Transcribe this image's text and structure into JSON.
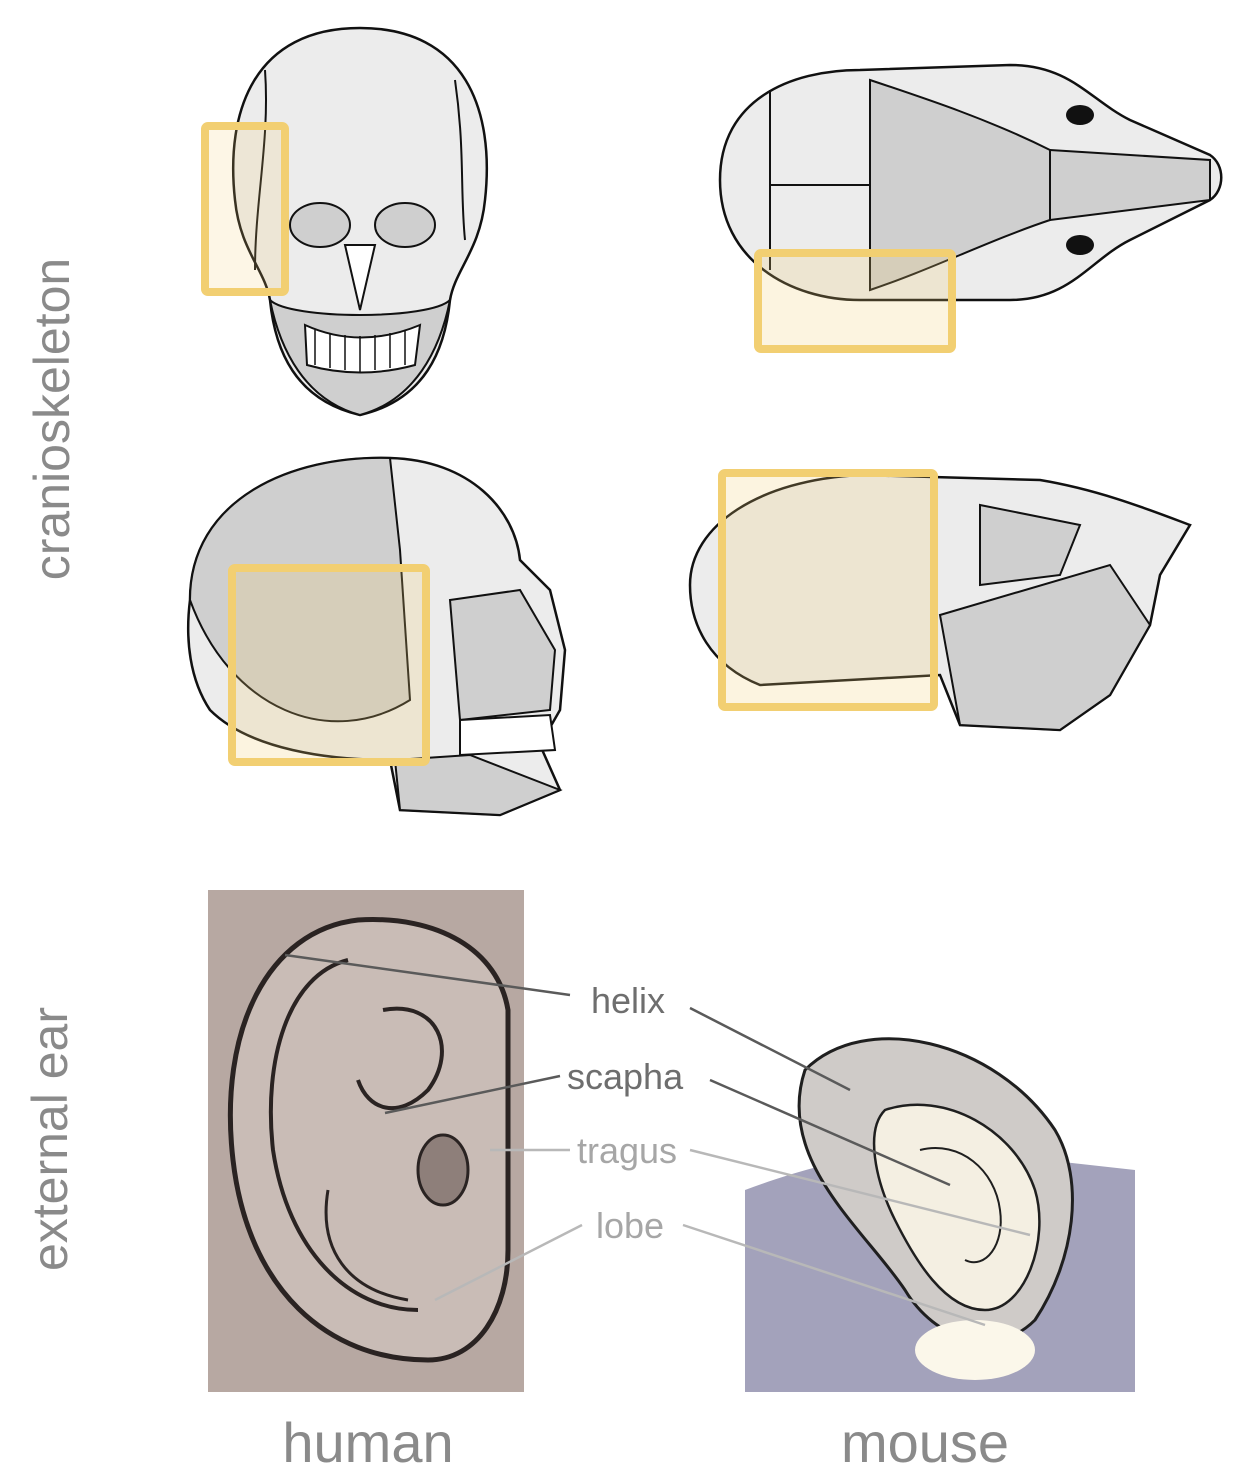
{
  "row_labels": {
    "top": "cranioskeleton",
    "bottom": "external ear"
  },
  "column_labels": {
    "left": "human",
    "right": "mouse"
  },
  "ear_labels": [
    {
      "text": "helix",
      "color": "#6e6e6e"
    },
    {
      "text": "scapha",
      "color": "#6e6e6e"
    },
    {
      "text": "tragus",
      "color": "#a6a6a6"
    },
    {
      "text": "lobe",
      "color": "#a6a6a6"
    }
  ],
  "colors": {
    "highlight_box": "#f2cf72",
    "bone_fill": "#cfcfcf",
    "bone_light": "#ececec",
    "human_ear_bg": "#b7a8a2",
    "mouse_ear_bg": "#a3a2bb"
  }
}
